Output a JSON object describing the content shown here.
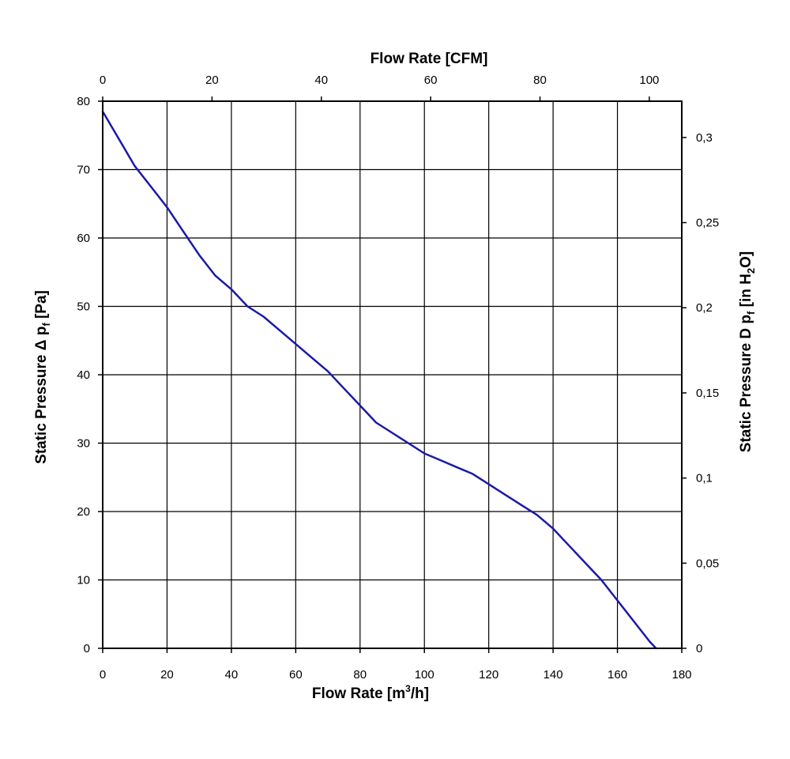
{
  "chart_data": {
    "type": "line",
    "title": "",
    "x_bottom": {
      "label_main": "Flow Rate [m",
      "label_sup": "3",
      "label_end": "/h]",
      "range": [
        0,
        180
      ],
      "ticks": [
        "0",
        "20",
        "40",
        "60",
        "80",
        "100",
        "120",
        "140",
        "160",
        "180"
      ]
    },
    "x_top": {
      "label": "Flow Rate [CFM]",
      "range": [
        0,
        105.94
      ],
      "ticks": [
        "0",
        "20",
        "40",
        "60",
        "80",
        "100"
      ]
    },
    "y_left": {
      "label_main": "Static Pressure Δ p",
      "label_sub": "f",
      "label_end": " [Pa]",
      "range": [
        0,
        80
      ],
      "ticks": [
        "0",
        "10",
        "20",
        "30",
        "40",
        "50",
        "60",
        "70",
        "80"
      ]
    },
    "y_right": {
      "label_main": "Static Pressure D p",
      "label_sub": "f",
      "label_mid": " [in H",
      "label_sub2": "2",
      "label_end": "O]",
      "range": [
        0,
        0.3213
      ],
      "ticks": [
        "0",
        "0,05",
        "0,1",
        "0,15",
        "0,2",
        "0,25",
        "0,3"
      ]
    },
    "grid": true,
    "legend": "none",
    "line_color": "#1a1aa8",
    "series": [
      {
        "x": [
          0,
          5,
          10,
          15,
          20,
          25,
          30,
          35,
          40,
          45,
          50,
          55,
          60,
          65,
          70,
          75,
          80,
          85,
          90,
          95,
          100,
          105,
          110,
          115,
          120,
          125,
          130,
          135,
          140,
          145,
          150,
          155,
          160,
          165,
          170,
          172
        ],
        "y": [
          78.5,
          74.5,
          70.5,
          67.5,
          64.5,
          61,
          57.5,
          54.5,
          52.5,
          50,
          48.5,
          46.5,
          44.5,
          42.5,
          40.5,
          38,
          35.5,
          33,
          31.5,
          30,
          28.5,
          27.5,
          26.5,
          25.5,
          24,
          22.5,
          21,
          19.5,
          17.5,
          15,
          12.5,
          10,
          7,
          4,
          1,
          0
        ]
      }
    ]
  }
}
